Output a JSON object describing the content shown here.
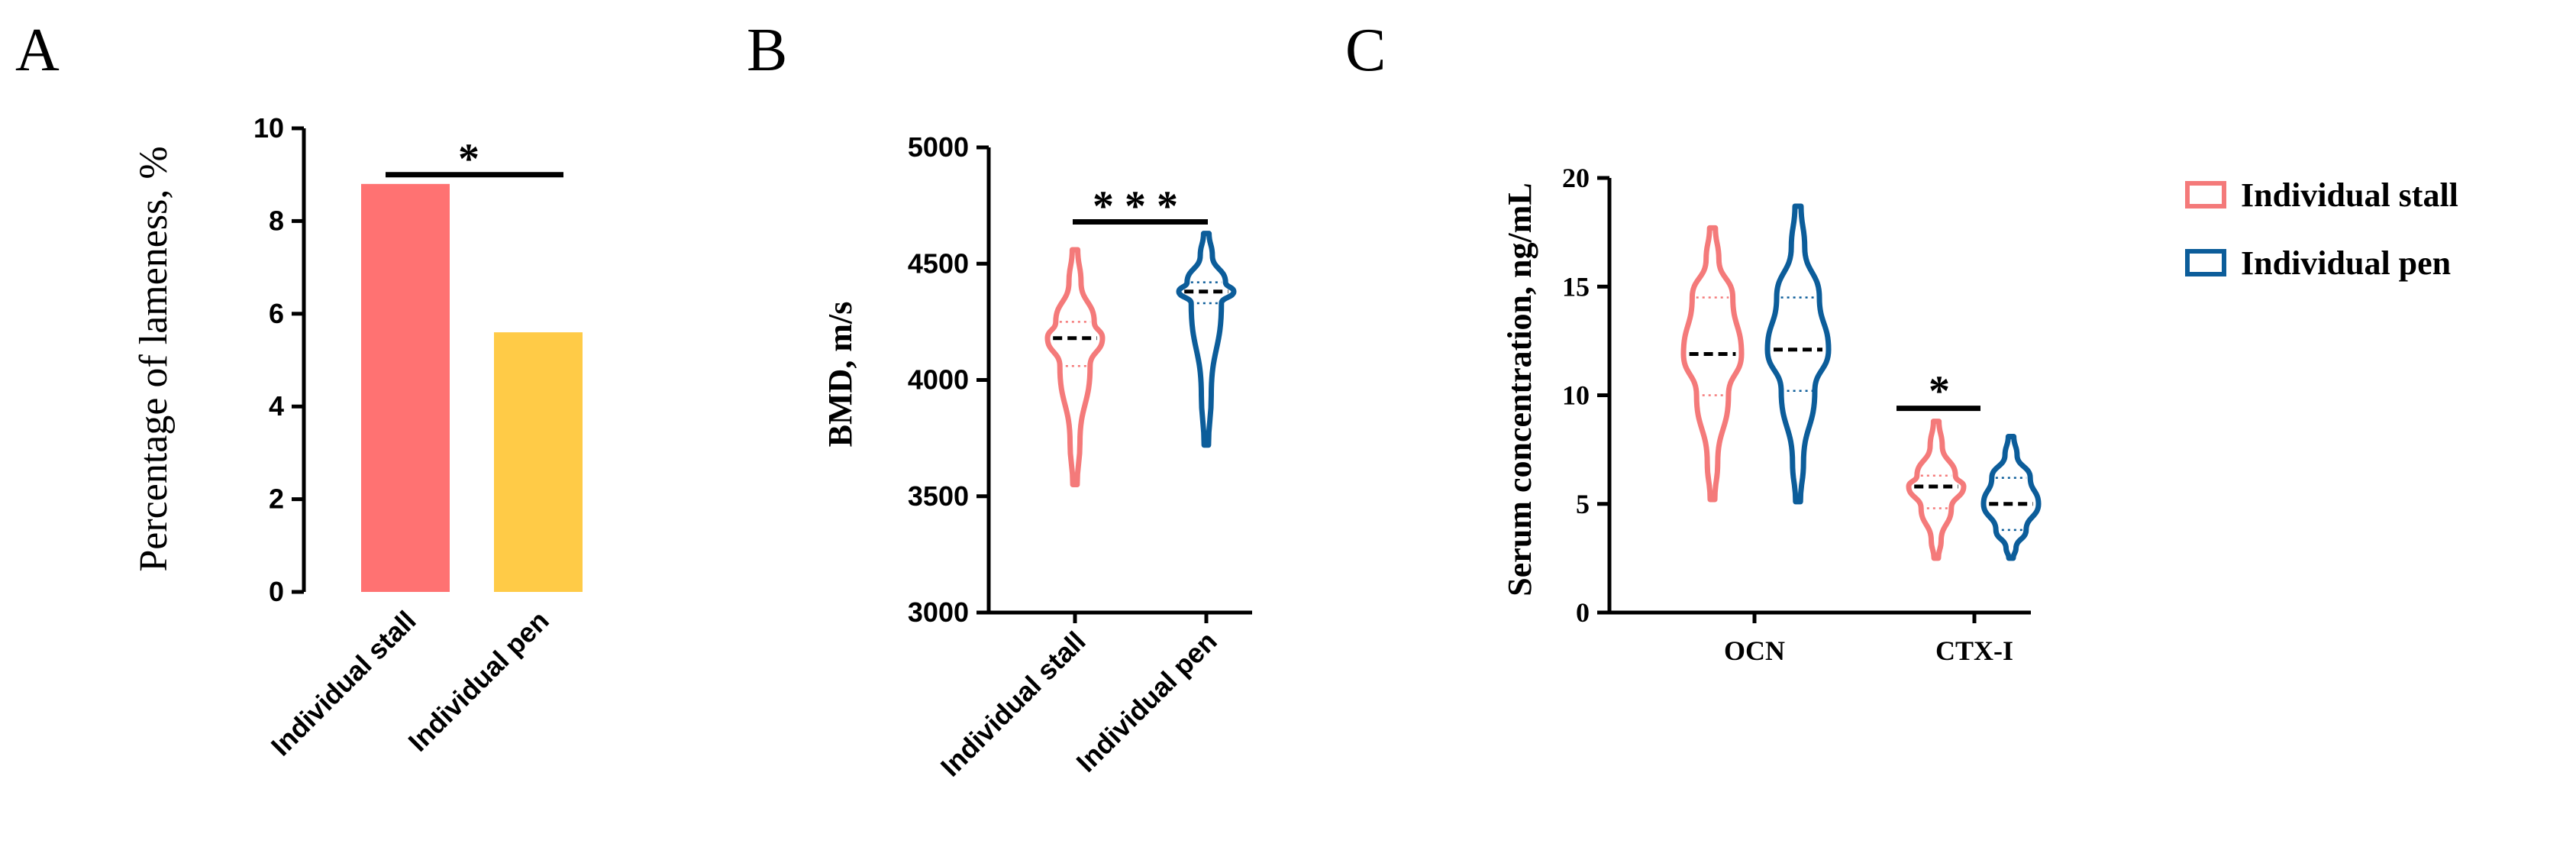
{
  "panels": {
    "A": {
      "letter": "A",
      "chart_data": {
        "type": "bar",
        "categories": [
          "Individual stall",
          "Individual pen"
        ],
        "values": [
          8.8,
          5.6
        ],
        "colors": [
          "#ff7272",
          "#ffcb47"
        ],
        "ylabel": "Percentage of lameness, %",
        "ylim": [
          0,
          10
        ],
        "yticks": [
          "0",
          "2",
          "4",
          "6",
          "8",
          "10"
        ],
        "significance": "*"
      }
    },
    "B": {
      "letter": "B",
      "chart_data": {
        "type": "violin",
        "categories": [
          "Individual stall",
          "Individual pen"
        ],
        "ylabel": "BMD, m/s",
        "ylim": [
          3000,
          5000
        ],
        "yticks": [
          "3000",
          "3500",
          "4000",
          "4500",
          "5000"
        ],
        "series": [
          {
            "name": "Individual stall",
            "min": 3550,
            "q1": 4060,
            "median": 4180,
            "q3": 4250,
            "max": 4560,
            "color": "#f47a7a"
          },
          {
            "name": "Individual pen",
            "min": 3720,
            "q1": 4330,
            "median": 4380,
            "q3": 4420,
            "max": 4630,
            "color": "#0c5d9a"
          }
        ],
        "significance": "***"
      }
    },
    "C": {
      "letter": "C",
      "chart_data": {
        "type": "violin",
        "categories": [
          "OCN",
          "CTX-I"
        ],
        "ylabel": "Serum concentration, ng/mL",
        "ylim": [
          0,
          20
        ],
        "yticks": [
          "0",
          "5",
          "10",
          "15",
          "20"
        ],
        "series": [
          {
            "name": "Individual stall",
            "color": "#f47a7a",
            "groups": [
              {
                "category": "OCN",
                "min": 5.2,
                "q1": 10.0,
                "median": 11.9,
                "q3": 14.5,
                "max": 17.7
              },
              {
                "category": "CTX-I",
                "min": 2.5,
                "q1": 4.8,
                "median": 5.8,
                "q3": 6.3,
                "max": 8.8
              }
            ]
          },
          {
            "name": "Individual pen",
            "color": "#0c5d9a",
            "groups": [
              {
                "category": "OCN",
                "min": 5.1,
                "q1": 10.2,
                "median": 12.1,
                "q3": 14.5,
                "max": 18.7
              },
              {
                "category": "CTX-I",
                "min": 2.5,
                "q1": 3.8,
                "median": 5.0,
                "q3": 6.2,
                "max": 8.1
              }
            ]
          }
        ],
        "significance_ctx": "*"
      }
    }
  },
  "legend": {
    "items": [
      {
        "label": "Individual stall",
        "color": "#f47a7a"
      },
      {
        "label": "Individual pen",
        "color": "#0c5d9a"
      }
    ]
  }
}
